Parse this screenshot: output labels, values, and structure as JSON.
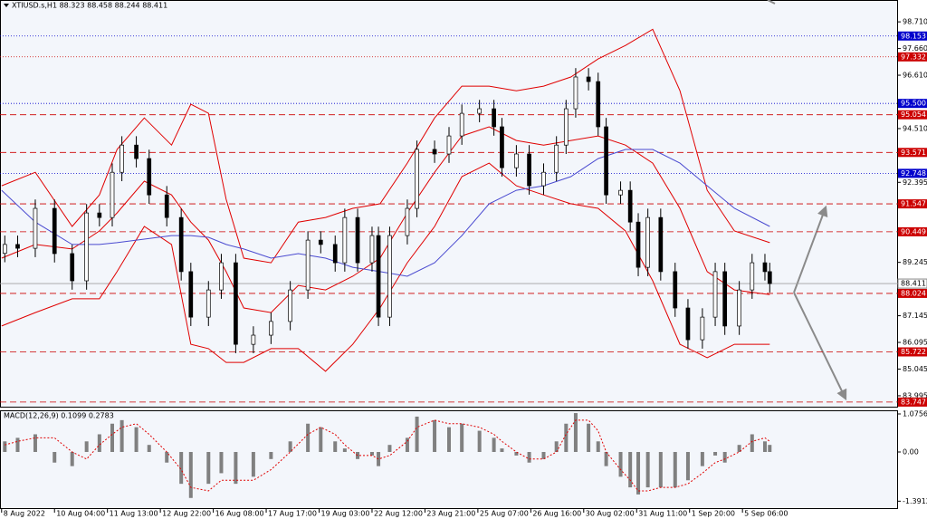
{
  "chart_data": [
    {
      "type": "candlestick",
      "title": "XTIUSD.s,H1  88.323 88.458 88.244 88.411",
      "x": [
        2,
        10,
        21,
        33,
        44,
        53,
        61,
        69,
        75,
        84,
        92,
        103,
        112,
        118,
        129,
        137,
        146,
        157,
        168,
        180,
        191,
        199,
        208,
        214,
        222,
        231,
        235,
        242,
        253,
        259,
        270,
        279,
        287,
        298,
        307,
        312,
        321,
        329,
        338,
        346,
        352,
        358,
        366,
        372,
        377,
        386,
        392,
        397,
        403,
        411,
        420,
        428,
        437,
        445,
        451,
        460,
        468,
        476,
        479
      ],
      "open": [
        89.6,
        89.95,
        89.8,
        91.37,
        89.59,
        88.52,
        91.19,
        91.01,
        92.79,
        93.86,
        93.33,
        91.9,
        91.01,
        88.88,
        87.09,
        88.16,
        89.23,
        86.02,
        86.38,
        86.92,
        88.16,
        90.12,
        89.95,
        89.23,
        91.01,
        89.23,
        90.3,
        87.09,
        90.3,
        91.37,
        93.69,
        93.51,
        94.22,
        95.11,
        95.29,
        94.58,
        92.97,
        93.51,
        92.26,
        92.79,
        93.86,
        95.29,
        96.54,
        96.36,
        94.58,
        91.9,
        92.08,
        90.83,
        89.05,
        91.01,
        88.88,
        87.45,
        86.2,
        87.09,
        88.88,
        86.74,
        88.16,
        89.23,
        88.88
      ],
      "high": [
        90.3,
        90.3,
        91.72,
        91.72,
        89.94,
        91.54,
        91.54,
        93.14,
        94.21,
        94.21,
        93.68,
        92.25,
        91.36,
        89.23,
        88.51,
        89.58,
        89.58,
        86.73,
        87.27,
        88.51,
        90.47,
        90.47,
        90.3,
        91.36,
        91.36,
        90.65,
        90.65,
        90.65,
        91.72,
        94.04,
        94.04,
        94.57,
        95.46,
        95.64,
        95.64,
        94.93,
        93.86,
        93.86,
        93.14,
        94.21,
        95.64,
        96.89,
        96.89,
        96.71,
        94.93,
        92.43,
        92.43,
        91.18,
        91.36,
        91.36,
        89.23,
        87.8,
        87.44,
        89.23,
        89.23,
        88.51,
        89.58,
        89.58,
        89.23
      ],
      "low": [
        89.25,
        89.45,
        89.45,
        89.24,
        88.17,
        88.17,
        90.66,
        90.66,
        92.44,
        92.98,
        91.55,
        90.66,
        88.53,
        86.74,
        86.74,
        87.81,
        85.67,
        85.67,
        86.03,
        86.57,
        87.81,
        89.6,
        88.88,
        88.88,
        88.88,
        88.88,
        86.74,
        86.74,
        89.95,
        91.02,
        93.16,
        93.16,
        93.87,
        94.76,
        94.23,
        92.62,
        92.62,
        91.91,
        91.91,
        92.44,
        93.51,
        94.94,
        96.01,
        94.23,
        91.55,
        91.55,
        90.48,
        88.7,
        88.7,
        88.53,
        87.1,
        85.85,
        85.85,
        86.74,
        86.39,
        86.39,
        87.81,
        88.53,
        88.06
      ],
      "close": [
        89.95,
        89.8,
        91.37,
        89.59,
        88.52,
        91.19,
        91.01,
        92.79,
        93.86,
        93.33,
        91.9,
        91.01,
        88.88,
        87.09,
        88.16,
        89.23,
        86.02,
        86.38,
        86.92,
        88.16,
        90.12,
        89.95,
        89.23,
        91.01,
        89.23,
        90.3,
        87.09,
        90.3,
        91.37,
        93.69,
        93.51,
        94.22,
        95.11,
        95.29,
        94.58,
        92.97,
        93.51,
        92.26,
        92.79,
        93.86,
        95.29,
        96.54,
        96.36,
        94.58,
        91.9,
        92.08,
        90.83,
        89.05,
        91.01,
        88.88,
        87.45,
        86.2,
        87.09,
        88.88,
        86.74,
        88.16,
        89.23,
        88.88,
        88.41
      ],
      "up_color": "#ffffff",
      "down_color": "#000000",
      "line_x": [
        0,
        21,
        44,
        61,
        72,
        89,
        106,
        118,
        129,
        140,
        151,
        168,
        185,
        202,
        219,
        236,
        253,
        270,
        287,
        304,
        321,
        338,
        355,
        372,
        389,
        406,
        423,
        440,
        457,
        479
      ],
      "lines": [
        {
          "color": "#e00000",
          "values": [
            92.26,
            92.79,
            90.66,
            91.9,
            93.69,
            94.93,
            93.86,
            95.47,
            95.11,
            91.73,
            89.41,
            89.23,
            90.83,
            91.01,
            91.37,
            91.55,
            93.15,
            94.93,
            96.18,
            96.18,
            96.0,
            96.18,
            96.54,
            97.25,
            97.78,
            98.42,
            96.0,
            92.08,
            90.48,
            90.02
          ]
        },
        {
          "color": "#e00000",
          "values": [
            89.41,
            89.95,
            89.77,
            90.48,
            91.19,
            92.44,
            91.9,
            90.83,
            90.12,
            88.88,
            87.45,
            87.27,
            88.34,
            88.16,
            88.7,
            89.41,
            91.19,
            92.79,
            94.22,
            94.58,
            94.04,
            93.86,
            94.04,
            94.22,
            93.86,
            93.15,
            91.37,
            88.88,
            88.16,
            87.98
          ]
        },
        {
          "color": "#e00000",
          "values": [
            86.74,
            87.27,
            87.81,
            87.81,
            88.88,
            90.66,
            89.95,
            86.02,
            85.85,
            85.31,
            85.31,
            85.85,
            85.85,
            84.96,
            86.02,
            87.45,
            89.23,
            90.66,
            92.62,
            93.15,
            92.26,
            91.9,
            91.55,
            91.37,
            90.48,
            88.52,
            86.02,
            85.49,
            86.02,
            86.02
          ]
        },
        {
          "color": "#4a4ad0",
          "values": [
            92.08,
            90.83,
            89.95,
            89.95,
            90.02,
            90.16,
            90.3,
            90.3,
            90.23,
            89.95,
            89.77,
            89.41,
            89.59,
            89.41,
            89.05,
            88.88,
            88.7,
            89.23,
            90.3,
            91.55,
            92.08,
            92.26,
            92.62,
            93.33,
            93.69,
            93.69,
            93.15,
            92.26,
            91.37,
            90.66
          ]
        }
      ],
      "levels": [
        {
          "value": 98.153,
          "color": "#0000cc",
          "style": "dotted"
        },
        {
          "value": 97.332,
          "color": "#cc0000",
          "style": "dotted"
        },
        {
          "value": {
            "value": 95.5,
            "label": "95.500"
          },
          "color": "#0000cc",
          "style": "dotted"
        },
        {
          "value": 95.054,
          "color": "#cc0000",
          "style": "dashed"
        },
        {
          "value": 93.571,
          "color": "#cc0000",
          "style": "dashed"
        },
        {
          "value": 92.748,
          "color": "#0000cc",
          "style": "dotted"
        },
        {
          "value": 91.547,
          "color": "#cc0000",
          "style": "dashed"
        },
        {
          "value": 90.449,
          "color": "#cc0000",
          "style": "dashed"
        },
        {
          "value": 88.024,
          "color": "#cc0000",
          "style": "dashed"
        },
        {
          "value": 85.722,
          "color": "#cc0000",
          "style": "dashed"
        },
        {
          "value": 83.747,
          "color": "#cc0000",
          "style": "dashed"
        }
      ],
      "last": 88.411,
      "xlim": [
        -1,
        559
      ],
      "xticks": [
        {
          "value": 0,
          "label": "8 Aug 2022"
        },
        {
          "value": 33,
          "label": "10 Aug 04:00"
        },
        {
          "value": 66,
          "label": "11 Aug 13:00"
        },
        {
          "value": 99,
          "label": "12 Aug 22:00"
        },
        {
          "value": 132,
          "label": "16 Aug 08:00"
        },
        {
          "value": 165,
          "label": "17 Aug 17:00"
        },
        {
          "value": 198,
          "label": "19 Aug 03:00"
        },
        {
          "value": 231,
          "label": "22 Aug 12:00"
        },
        {
          "value": 264,
          "label": "23 Aug 21:00"
        },
        {
          "value": 297,
          "label": "25 Aug 07:00"
        },
        {
          "value": 330,
          "label": "26 Aug 16:00"
        },
        {
          "value": 363,
          "label": "30 Aug 02:00"
        },
        {
          "value": 396,
          "label": "31 Aug 11:00"
        },
        {
          "value": 429,
          "label": "1 Sep 20:00"
        },
        {
          "value": 462,
          "label": "5 Sep 06:00"
        }
      ],
      "ylim": [
        83.53,
        99.57
      ],
      "yticks": [
        {
          "value": 98.71,
          "label": "98.710"
        },
        {
          "value": 97.66,
          "label": "97.660"
        },
        {
          "value": 96.61,
          "label": "96.610"
        },
        {
          "value": 94.51,
          "label": "94.510"
        },
        92.395,
        89.245,
        87.145,
        86.095,
        85.045,
        83.995
      ]
    },
    {
      "type": "macd",
      "title": "MACD(12,26,9) 0.1099 0.2783",
      "hist_color": "#808080",
      "signal_color": "#e00000",
      "values": [
        0.3,
        0.4,
        0.5,
        -0.3,
        -0.4,
        0.3,
        0.5,
        0.8,
        0.9,
        0.7,
        0.2,
        -0.3,
        -0.9,
        -1.3,
        -0.9,
        -0.6,
        -0.9,
        -0.7,
        -0.2,
        0.3,
        0.8,
        0.7,
        0.3,
        0.1,
        -0.2,
        -0.1,
        -0.4,
        0.2,
        0.4,
        1.0,
        0.9,
        0.7,
        0.8,
        0.6,
        0.4,
        0.1,
        -0.1,
        -0.3,
        -0.2,
        0.3,
        0.8,
        1.1,
        0.8,
        0.3,
        -0.4,
        -0.7,
        -1.0,
        -1.2,
        -1.0,
        -1.0,
        -1.0,
        -0.8,
        -0.4,
        -0.1,
        -0.3,
        0.2,
        0.5,
        0.3,
        0.2
      ],
      "signal": [
        0.2,
        0.3,
        0.4,
        0.4,
        0.0,
        -0.2,
        0.2,
        0.5,
        0.7,
        0.8,
        0.5,
        0.0,
        -0.5,
        -1.0,
        -1.1,
        -0.8,
        -0.8,
        -0.8,
        -0.5,
        0.0,
        0.5,
        0.7,
        0.5,
        0.2,
        -0.1,
        -0.1,
        -0.2,
        -0.1,
        0.3,
        0.7,
        0.9,
        0.8,
        0.8,
        0.7,
        0.5,
        0.3,
        0.0,
        -0.2,
        -0.2,
        0.0,
        0.5,
        0.9,
        0.9,
        0.6,
        0.0,
        -0.5,
        -0.8,
        -1.1,
        -1.1,
        -1.0,
        -1.0,
        -0.9,
        -0.6,
        -0.3,
        -0.2,
        0.0,
        0.3,
        0.4,
        0.3
      ],
      "ylim": [
        -1.613,
        1.178
      ],
      "yticks": [
        1.0756,
        {
          "value": 0,
          "label": "0.00"
        },
        -1.3912
      ]
    }
  ]
}
